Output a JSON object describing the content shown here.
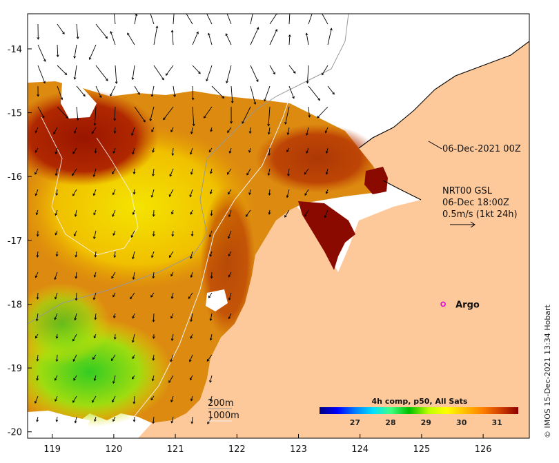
{
  "map": {
    "lon_range": [
      118.6,
      126.75
    ],
    "lat_range": [
      -20.1,
      -13.45
    ],
    "lon_ticks": [
      "119",
      "120",
      "121",
      "122",
      "123",
      "124",
      "125",
      "126"
    ],
    "lat_ticks": [
      "-14",
      "-15",
      "-16",
      "-17",
      "-18",
      "-19",
      "-20"
    ],
    "land_color": "#fdc89a",
    "cloud_color": "#ffffff"
  },
  "annotations": {
    "current_time": "06-Dec-2021 00Z",
    "wind_source": "NRT00 GSL",
    "wind_time": "06-Dec 18:00Z",
    "wind_scale": "0.5m/s (1kt 24h)"
  },
  "argo": {
    "label": "Argo",
    "lon": 125.35,
    "lat": -18.0,
    "color": "#e000e0"
  },
  "depth_legend": {
    "items": [
      "200m",
      "1000m"
    ]
  },
  "colorbar": {
    "title": "4h comp, p50, All Sats",
    "ticks": [
      "27",
      "28",
      "29",
      "30",
      "31"
    ],
    "range": [
      26.0,
      31.6
    ],
    "colors": [
      "#00007f",
      "#0000ff",
      "#0080ff",
      "#00e0ff",
      "#40ff80",
      "#00c000",
      "#c0ff00",
      "#ffff00",
      "#ffc000",
      "#ff8000",
      "#d04000",
      "#8b0000"
    ]
  },
  "credit": "© IMOS 15-Dec-2021 13:34 Hobart"
}
